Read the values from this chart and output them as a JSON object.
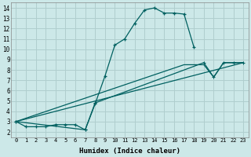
{
  "xlabel": "Humidex (Indice chaleur)",
  "bg_color": "#cce8e8",
  "grid_color": "#b0cece",
  "line_color": "#006060",
  "xlim": [
    -0.5,
    23.5
  ],
  "ylim": [
    1.5,
    14.5
  ],
  "xticks": [
    0,
    1,
    2,
    3,
    4,
    5,
    6,
    7,
    8,
    9,
    10,
    11,
    12,
    13,
    14,
    15,
    16,
    17,
    18,
    19,
    20,
    21,
    22,
    23
  ],
  "yticks": [
    2,
    3,
    4,
    5,
    6,
    7,
    8,
    9,
    10,
    11,
    12,
    13,
    14
  ],
  "line1_x": [
    0,
    1,
    2,
    3,
    4,
    5,
    6,
    7,
    8,
    9,
    10,
    11,
    12,
    13,
    14,
    15,
    16,
    17,
    18
  ],
  "line1_y": [
    3.0,
    2.5,
    2.5,
    2.5,
    2.7,
    2.7,
    2.7,
    2.2,
    4.7,
    7.4,
    10.4,
    11.0,
    12.5,
    13.8,
    14.0,
    13.5,
    13.5,
    13.4,
    10.2
  ],
  "line2_x": [
    0,
    17,
    19,
    20,
    21,
    22,
    23
  ],
  "line2_y": [
    3.0,
    8.5,
    8.5,
    7.3,
    8.7,
    8.7,
    8.7
  ],
  "line3_x": [
    0,
    7,
    8,
    19,
    20,
    21,
    22,
    23
  ],
  "line3_y": [
    3.0,
    2.2,
    4.8,
    8.7,
    7.3,
    8.7,
    8.7,
    8.7
  ],
  "line4_x": [
    0,
    23
  ],
  "line4_y": [
    3.0,
    8.7
  ]
}
